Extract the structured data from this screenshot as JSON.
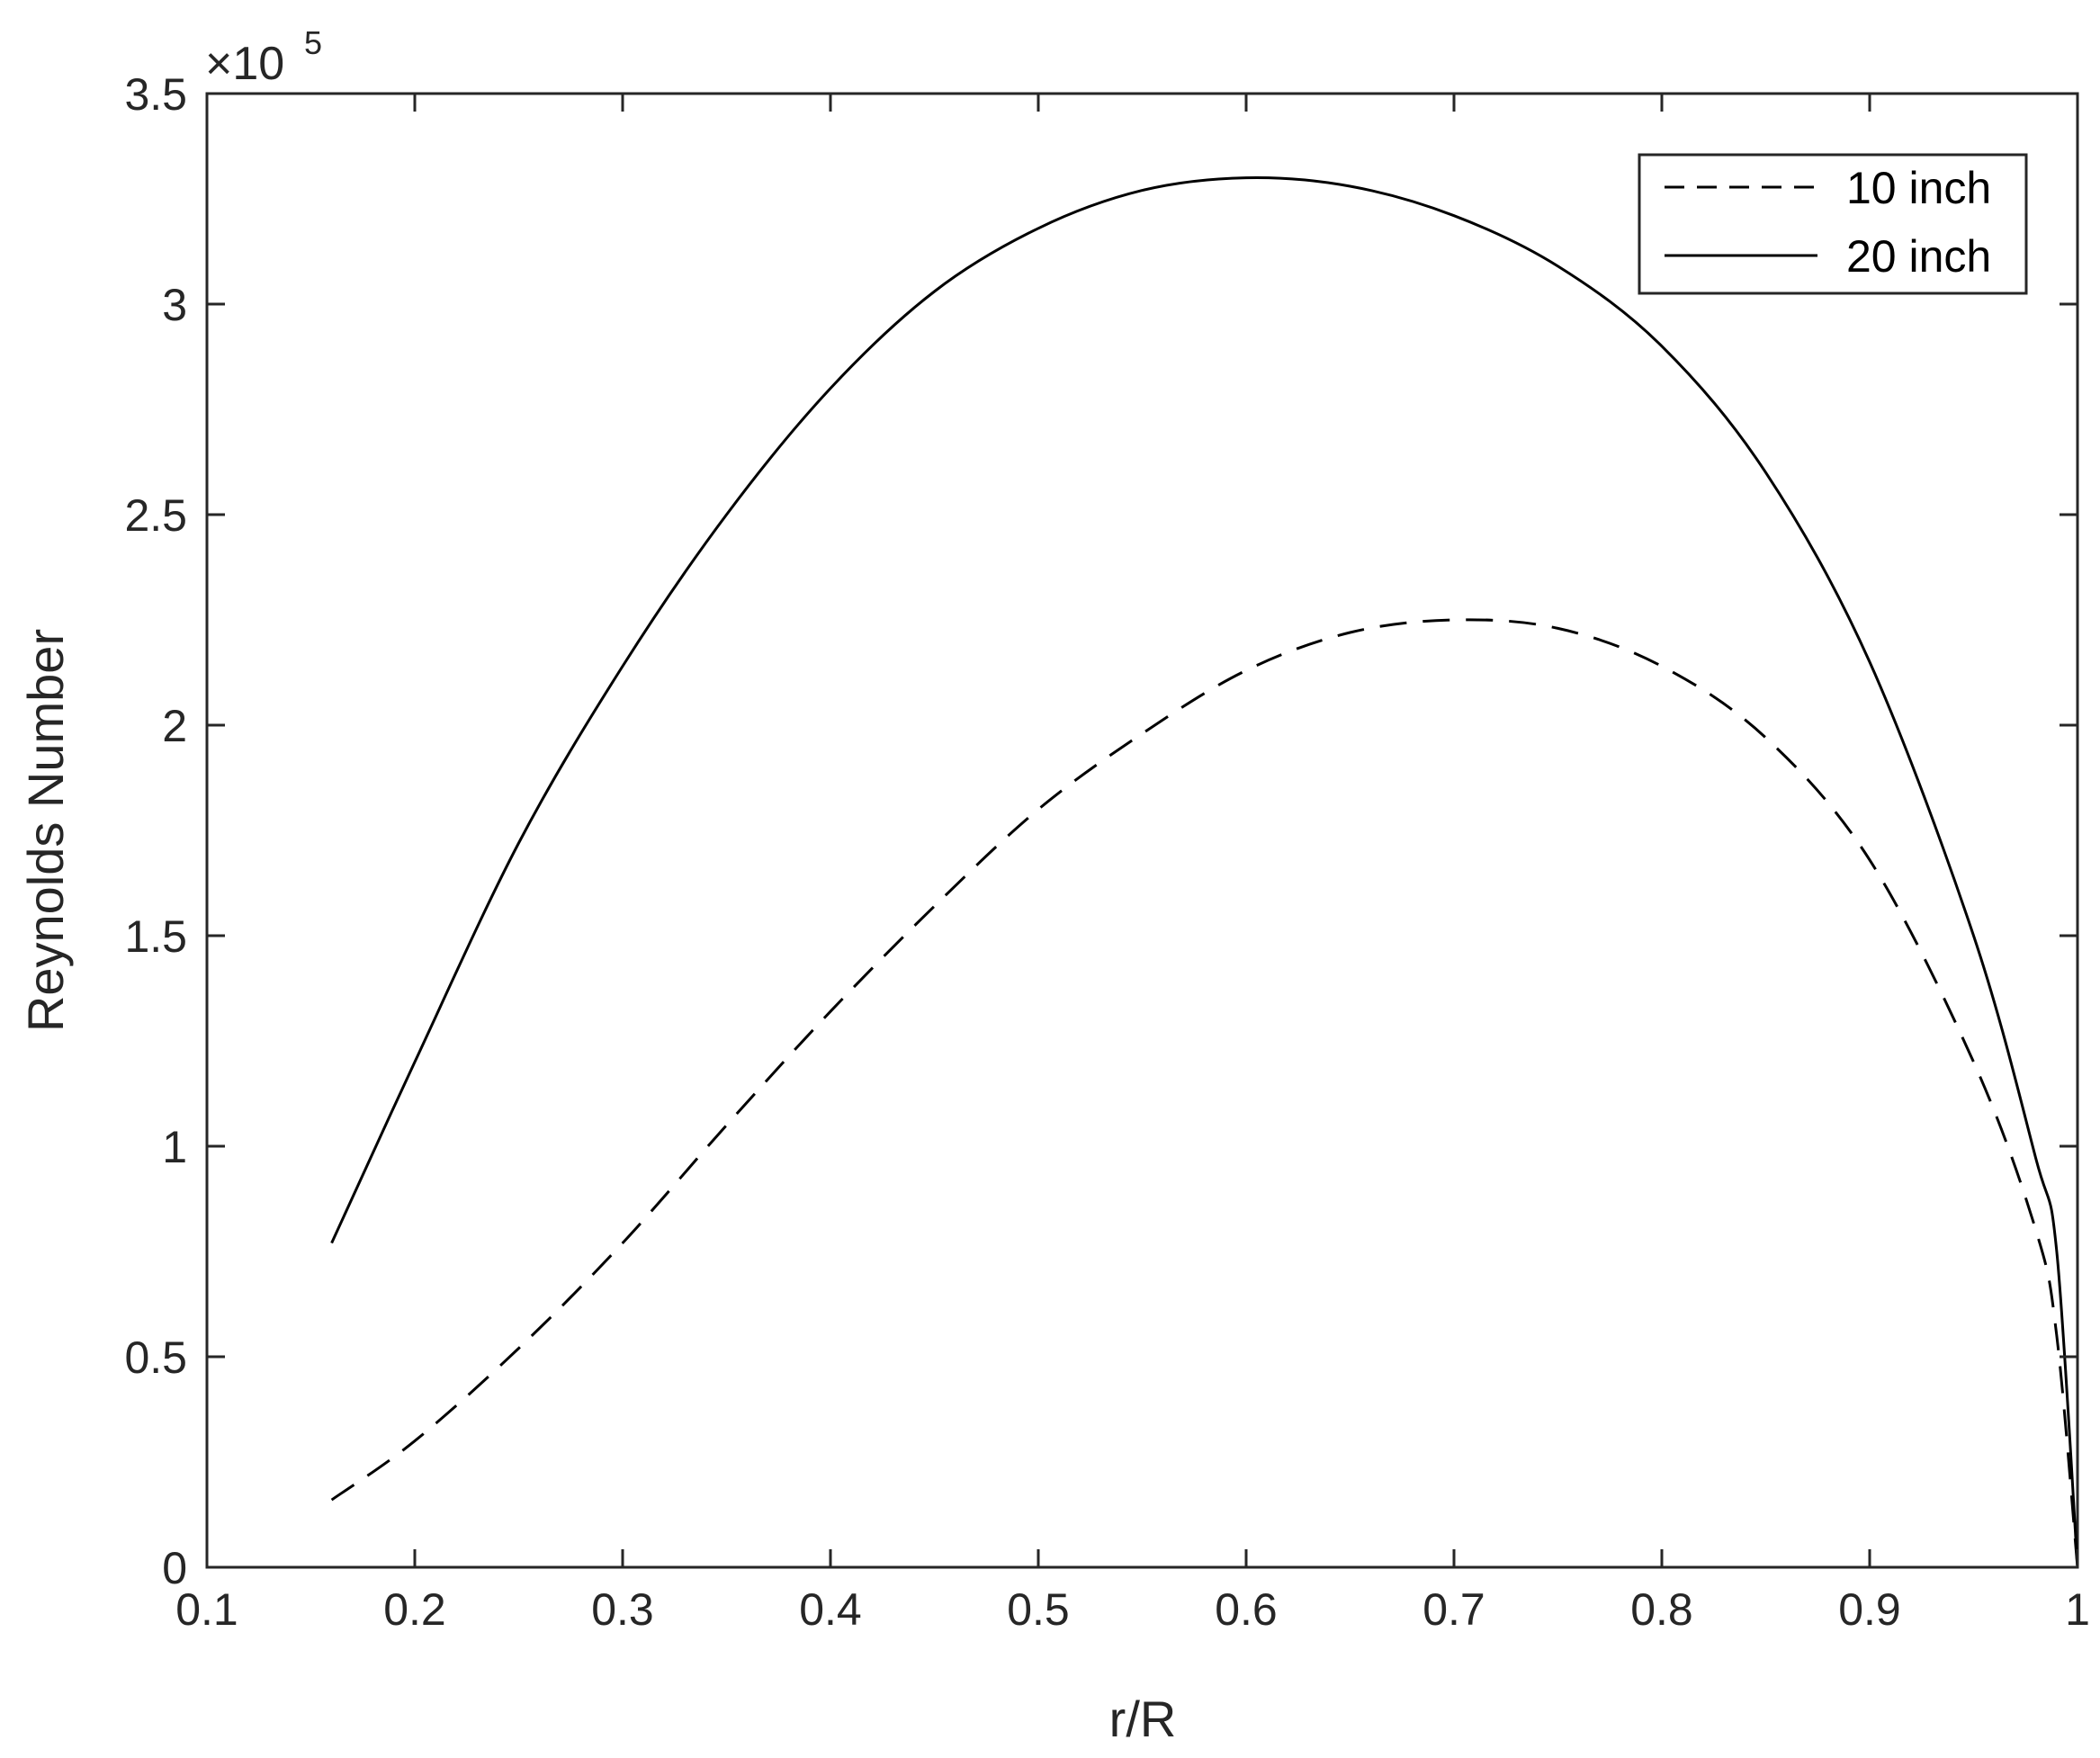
{
  "chart_data": {
    "type": "line",
    "xlabel": "r/R",
    "ylabel": "Reynolds Number",
    "xlim": [
      0.1,
      1
    ],
    "ylim": [
      0,
      350000
    ],
    "x_ticks": [
      "0.1",
      "0.2",
      "0.3",
      "0.4",
      "0.5",
      "0.6",
      "0.7",
      "0.8",
      "0.9",
      "1"
    ],
    "y_ticks": [
      "0",
      "0.5",
      "1",
      "1.5",
      "2",
      "2.5",
      "3",
      "3.5"
    ],
    "y_multiplier": {
      "base": "×10",
      "exponent": "5"
    },
    "grid": false,
    "legend_position": "top-right",
    "series": [
      {
        "name": "10 inch",
        "style": "dashed",
        "color": "#000000",
        "x": [
          0.16,
          0.2,
          0.25,
          0.3,
          0.35,
          0.4,
          0.45,
          0.5,
          0.55,
          0.6,
          0.65,
          0.7,
          0.75,
          0.8,
          0.85,
          0.9,
          0.95,
          0.98,
          0.99,
          1.0
        ],
        "y": [
          16000,
          30000,
          52000,
          77000,
          105000,
          132000,
          157000,
          180000,
          198000,
          213000,
          222000,
          225000,
          223000,
          214000,
          197000,
          168000,
          120000,
          80000,
          55000,
          0
        ]
      },
      {
        "name": "20 inch",
        "style": "solid",
        "color": "#000000",
        "x": [
          0.16,
          0.2,
          0.25,
          0.3,
          0.35,
          0.4,
          0.45,
          0.5,
          0.55,
          0.6,
          0.65,
          0.7,
          0.75,
          0.8,
          0.85,
          0.9,
          0.95,
          0.98,
          0.99,
          1.0
        ],
        "y": [
          77000,
          120000,
          172000,
          214000,
          250000,
          280000,
          303000,
          318000,
          327000,
          330000,
          328000,
          321000,
          309000,
          290000,
          260000,
          215000,
          150000,
          97000,
          75000,
          0
        ]
      }
    ]
  }
}
